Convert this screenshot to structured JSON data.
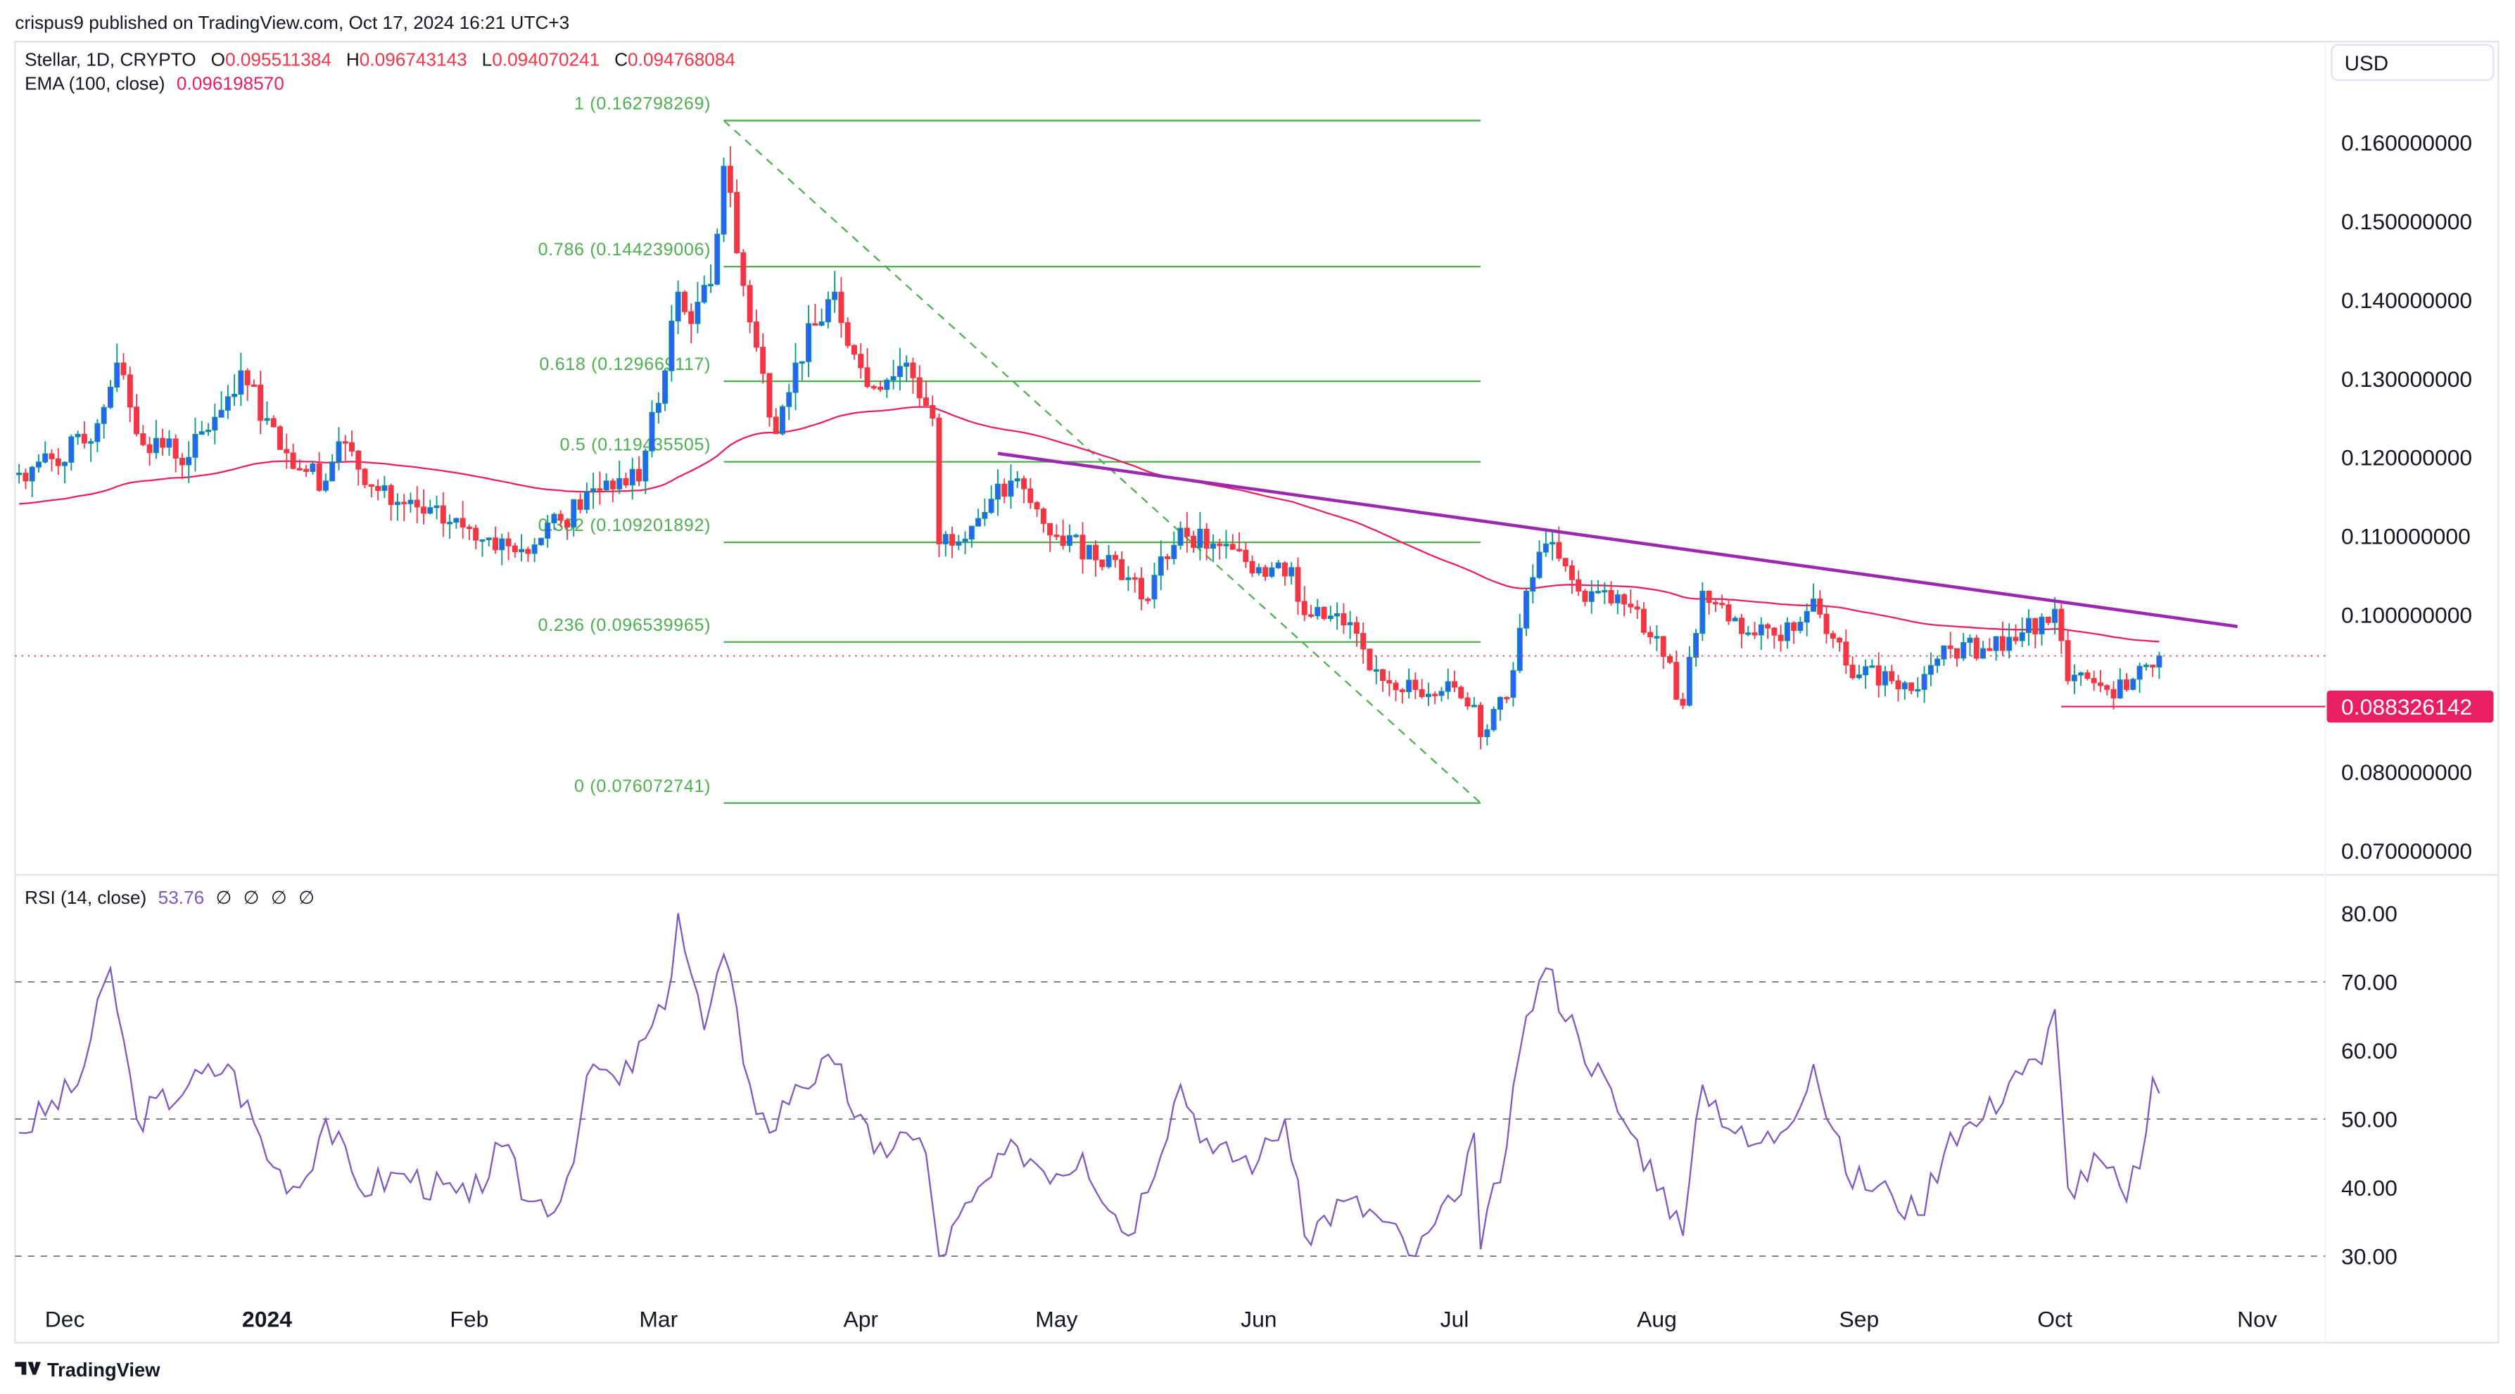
{
  "header": {
    "published": "crispus9 published on TradingView.com, Oct 17, 2024 16:21 UTC+3",
    "symbol": "Stellar, 1D, CRYPTO",
    "ohlc": [
      {
        "label": "O",
        "value": "0.095511384"
      },
      {
        "label": "H",
        "value": "0.096743143"
      },
      {
        "label": "L",
        "value": "0.094070241"
      },
      {
        "label": "C",
        "value": "0.094768084"
      }
    ],
    "ema_label": "EMA (100, close)",
    "ema_value": "0.096198570",
    "currency": "USD"
  },
  "rsi_header": {
    "label": "RSI (14, close)",
    "value": "53.76",
    "extras": [
      "∅",
      "∅",
      "∅",
      "∅"
    ]
  },
  "footer": {
    "brand": "TradingView"
  },
  "colors": {
    "up_body": "#2962ff",
    "up_border": "#089981",
    "down": "#f23645",
    "ema": "#e91e63",
    "fib": "#4caf50",
    "trendline": "#9c27b0",
    "rsi": "#7e57c2",
    "support": "#e91e63"
  },
  "chart_data": [
    {
      "type": "candlestick",
      "title": "Stellar, 1D, CRYPTO",
      "ylim": [
        0.066,
        0.167
      ],
      "y_ticks": [
        "0.160000000",
        "0.150000000",
        "0.140000000",
        "0.130000000",
        "0.120000000",
        "0.110000000",
        "0.100000000",
        "0.080000000",
        "0.070000000"
      ],
      "x_ticks": [
        "Dec",
        "2024",
        "Feb",
        "Mar",
        "Apr",
        "May",
        "Jun",
        "Jul",
        "Aug",
        "Sep",
        "Oct",
        "Nov"
      ],
      "close_path": [
        [
          "2023-11-24",
          0.118
        ],
        [
          "2023-12-05",
          0.122
        ],
        [
          "2023-12-09",
          0.132
        ],
        [
          "2023-12-12",
          0.123
        ],
        [
          "2023-12-20",
          0.12
        ],
        [
          "2023-12-28",
          0.131
        ],
        [
          "2024-01-03",
          0.121
        ],
        [
          "2024-01-10",
          0.117
        ],
        [
          "2024-01-12",
          0.122
        ],
        [
          "2024-01-20",
          0.114
        ],
        [
          "2024-02-01",
          0.111
        ],
        [
          "2024-02-08",
          0.108
        ],
        [
          "2024-02-15",
          0.112
        ],
        [
          "2024-02-22",
          0.117
        ],
        [
          "2024-02-27",
          0.117
        ],
        [
          "2024-03-02",
          0.131
        ],
        [
          "2024-03-04",
          0.141
        ],
        [
          "2024-03-06",
          0.137
        ],
        [
          "2024-03-09",
          0.142
        ],
        [
          "2024-03-11",
          0.157
        ],
        [
          "2024-03-13",
          0.146
        ],
        [
          "2024-03-16",
          0.134
        ],
        [
          "2024-03-19",
          0.123
        ],
        [
          "2024-03-22",
          0.132
        ],
        [
          "2024-03-28",
          0.141
        ],
        [
          "2024-04-02",
          0.129
        ],
        [
          "2024-04-08",
          0.132
        ],
        [
          "2024-04-12",
          0.125
        ],
        [
          "2024-04-13",
          0.109
        ],
        [
          "2024-04-20",
          0.113
        ],
        [
          "2024-04-24",
          0.117
        ],
        [
          "2024-05-01",
          0.11
        ],
        [
          "2024-05-10",
          0.107
        ],
        [
          "2024-05-14",
          0.102
        ],
        [
          "2024-05-20",
          0.111
        ],
        [
          "2024-05-25",
          0.109
        ],
        [
          "2024-06-01",
          0.106
        ],
        [
          "2024-06-06",
          0.106
        ],
        [
          "2024-06-08",
          0.1
        ],
        [
          "2024-06-15",
          0.099
        ],
        [
          "2024-06-18",
          0.093
        ],
        [
          "2024-06-25",
          0.0905
        ],
        [
          "2024-06-30",
          0.0915
        ],
        [
          "2024-07-04",
          0.0885
        ],
        [
          "2024-07-05",
          0.0845
        ],
        [
          "2024-07-09",
          0.0895
        ],
        [
          "2024-07-12",
          0.103
        ],
        [
          "2024-07-15",
          0.109
        ],
        [
          "2024-07-20",
          0.103
        ],
        [
          "2024-07-28",
          0.101
        ],
        [
          "2024-08-02",
          0.0947
        ],
        [
          "2024-08-05",
          0.0885
        ],
        [
          "2024-08-08",
          0.103
        ],
        [
          "2024-08-15",
          0.0977
        ],
        [
          "2024-08-20",
          0.0967
        ],
        [
          "2024-08-25",
          0.102
        ],
        [
          "2024-08-30",
          0.0936
        ],
        [
          "2024-09-06",
          0.0916
        ],
        [
          "2024-09-10",
          0.0905
        ],
        [
          "2024-09-15",
          0.0957
        ],
        [
          "2024-09-20",
          0.0957
        ],
        [
          "2024-09-25",
          0.0967
        ],
        [
          "2024-09-29",
          0.0997
        ],
        [
          "2024-10-01",
          0.1007
        ],
        [
          "2024-10-03",
          0.0916
        ],
        [
          "2024-10-08",
          0.091
        ],
        [
          "2024-10-12",
          0.0905
        ],
        [
          "2024-10-15",
          0.0936
        ],
        [
          "2024-10-17",
          0.094768084
        ]
      ],
      "ema_period": 100,
      "last_price": 0.094768084,
      "fibonacci": {
        "from": [
          "2024-03-11",
          0.162798269
        ],
        "to": [
          "2024-07-05",
          0.076072741
        ],
        "levels": [
          {
            "label": "1 (0.162798269)",
            "value": 0.162798269
          },
          {
            "label": "0.786 (0.144239006)",
            "value": 0.144239006
          },
          {
            "label": "0.618 (0.129669117)",
            "value": 0.129669117
          },
          {
            "label": "0.5 (0.119435505)",
            "value": 0.119435505
          },
          {
            "label": "0.382 (0.109201892)",
            "value": 0.109201892
          },
          {
            "label": "0.236 (0.096539965)",
            "value": 0.096539965
          },
          {
            "label": "0 (0.076072741)",
            "value": 0.076072741
          }
        ]
      },
      "trendline": [
        [
          "2024-04-22",
          0.1205
        ],
        [
          "2024-10-29",
          0.0985
        ]
      ],
      "support": {
        "from": "2024-10-02",
        "value": 0.088326142,
        "label": "0.088326142"
      }
    },
    {
      "type": "line",
      "title": "RSI (14, close)",
      "ylim": [
        28,
        84
      ],
      "y_ticks": [
        "80.00",
        "70.00",
        "60.00",
        "50.00",
        "40.00",
        "30.00"
      ],
      "bands": [
        70,
        50,
        30
      ],
      "points": [
        [
          "2023-11-24",
          48
        ],
        [
          "2023-12-03",
          55
        ],
        [
          "2023-12-08",
          72
        ],
        [
          "2023-12-12",
          50
        ],
        [
          "2023-12-20",
          55
        ],
        [
          "2023-12-26",
          58
        ],
        [
          "2024-01-02",
          43
        ],
        [
          "2024-01-06",
          40
        ],
        [
          "2024-01-10",
          50
        ],
        [
          "2024-01-15",
          40
        ],
        [
          "2024-01-22",
          42
        ],
        [
          "2024-02-01",
          38
        ],
        [
          "2024-02-06",
          46
        ],
        [
          "2024-02-10",
          38
        ],
        [
          "2024-02-15",
          38
        ],
        [
          "2024-02-20",
          58
        ],
        [
          "2024-02-24",
          55
        ],
        [
          "2024-03-02",
          66
        ],
        [
          "2024-03-04",
          80
        ],
        [
          "2024-03-08",
          63
        ],
        [
          "2024-03-11",
          74
        ],
        [
          "2024-03-15",
          55
        ],
        [
          "2024-03-18",
          48
        ],
        [
          "2024-03-22",
          55
        ],
        [
          "2024-03-28",
          58
        ],
        [
          "2024-04-03",
          45
        ],
        [
          "2024-04-08",
          48
        ],
        [
          "2024-04-11",
          45
        ],
        [
          "2024-04-13",
          30
        ],
        [
          "2024-04-18",
          38
        ],
        [
          "2024-04-25",
          46
        ],
        [
          "2024-05-01",
          42
        ],
        [
          "2024-05-05",
          45
        ],
        [
          "2024-05-12",
          33
        ],
        [
          "2024-05-20",
          55
        ],
        [
          "2024-05-25",
          45
        ],
        [
          "2024-06-01",
          44
        ],
        [
          "2024-06-05",
          50
        ],
        [
          "2024-06-08",
          33
        ],
        [
          "2024-06-14",
          38
        ],
        [
          "2024-06-19",
          36
        ],
        [
          "2024-06-25",
          30
        ],
        [
          "2024-07-01",
          38
        ],
        [
          "2024-07-04",
          48
        ],
        [
          "2024-07-05",
          31
        ],
        [
          "2024-07-09",
          46
        ],
        [
          "2024-07-12",
          65
        ],
        [
          "2024-07-15",
          72
        ],
        [
          "2024-07-20",
          62
        ],
        [
          "2024-07-28",
          48
        ],
        [
          "2024-08-02",
          40
        ],
        [
          "2024-08-05",
          33
        ],
        [
          "2024-08-08",
          55
        ],
        [
          "2024-08-15",
          46
        ],
        [
          "2024-08-20",
          48
        ],
        [
          "2024-08-25",
          58
        ],
        [
          "2024-08-30",
          42
        ],
        [
          "2024-09-06",
          39
        ],
        [
          "2024-09-10",
          36
        ],
        [
          "2024-09-15",
          48
        ],
        [
          "2024-09-20",
          50
        ],
        [
          "2024-09-25",
          57
        ],
        [
          "2024-09-29",
          58
        ],
        [
          "2024-10-01",
          66
        ],
        [
          "2024-10-03",
          40
        ],
        [
          "2024-10-08",
          44
        ],
        [
          "2024-10-12",
          38
        ],
        [
          "2024-10-15",
          48
        ],
        [
          "2024-10-16",
          56
        ],
        [
          "2024-10-17",
          53.76
        ]
      ]
    }
  ]
}
